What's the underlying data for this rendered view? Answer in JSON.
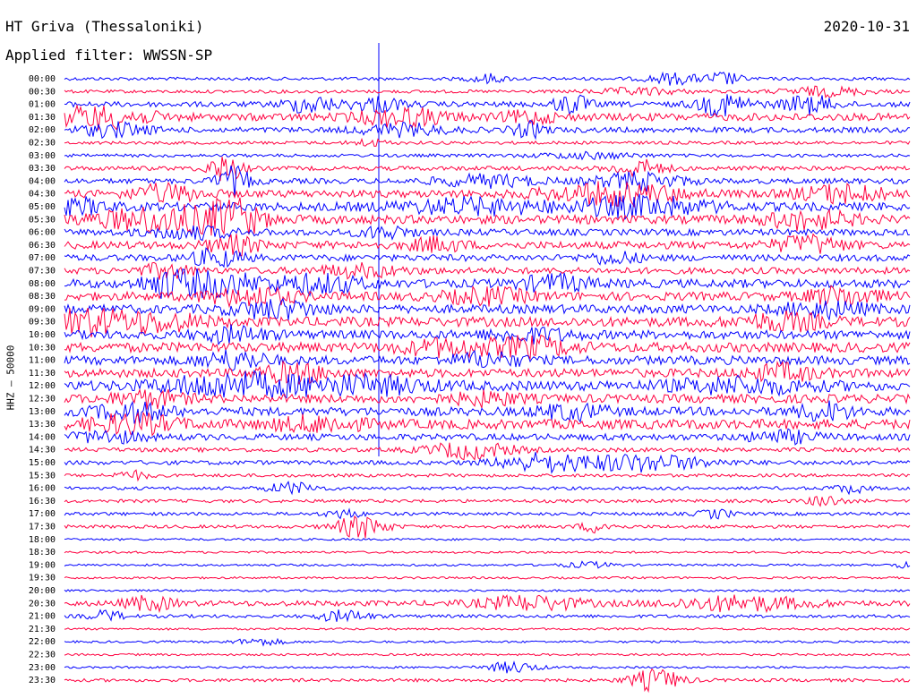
{
  "header": {
    "station": "HT Griva (Thessaloniki)",
    "date": "2020-10-31",
    "filter": "Applied filter: WWSSN-SP",
    "component_label": "HHZ – 50000"
  },
  "colors": {
    "even_hour": "#0000ff",
    "odd_hour": "#ff0040",
    "divider": "#0000ff"
  },
  "chart_data": {
    "type": "line",
    "title": "HT Griva (Thessaloniki)",
    "subtitle": "Applied filter: WWSSN-SP",
    "ylabel": "HHZ – 50000",
    "xlabel": "",
    "grid": false,
    "rows": [
      {
        "time": "00:00",
        "base": 0.3,
        "bursts": [
          {
            "t": 0.5,
            "w": 0.02,
            "a": 0.8
          },
          {
            "t": 0.72,
            "w": 0.03,
            "a": 1.0
          },
          {
            "t": 0.78,
            "w": 0.02,
            "a": 1.2
          }
        ]
      },
      {
        "time": "00:30",
        "base": 0.3,
        "bursts": [
          {
            "t": 0.68,
            "w": 0.05,
            "a": 0.6
          },
          {
            "t": 0.9,
            "w": 0.05,
            "a": 0.8
          }
        ]
      },
      {
        "time": "01:00",
        "base": 0.5,
        "bursts": [
          {
            "t": 0.29,
            "w": 0.03,
            "a": 1.5
          },
          {
            "t": 0.37,
            "w": 0.03,
            "a": 1.3
          },
          {
            "t": 0.6,
            "w": 0.02,
            "a": 1.8
          },
          {
            "t": 0.78,
            "w": 0.03,
            "a": 2.0
          },
          {
            "t": 0.88,
            "w": 0.03,
            "a": 1.6
          }
        ]
      },
      {
        "time": "01:30",
        "base": 0.7,
        "bursts": [
          {
            "t": 0.04,
            "w": 0.06,
            "a": 1.8
          },
          {
            "t": 0.4,
            "w": 0.05,
            "a": 1.5
          },
          {
            "t": 0.55,
            "w": 0.03,
            "a": 1.0
          }
        ]
      },
      {
        "time": "02:00",
        "base": 0.5,
        "bursts": [
          {
            "t": 0.06,
            "w": 0.04,
            "a": 1.2
          },
          {
            "t": 0.4,
            "w": 0.05,
            "a": 1.0
          },
          {
            "t": 0.55,
            "w": 0.02,
            "a": 1.3
          }
        ]
      },
      {
        "time": "02:30",
        "base": 0.3,
        "bursts": [
          {
            "t": 0.36,
            "w": 0.02,
            "a": 0.6
          }
        ]
      },
      {
        "time": "03:00",
        "base": 0.3,
        "bursts": [
          {
            "t": 0.62,
            "w": 0.06,
            "a": 0.5
          }
        ]
      },
      {
        "time": "03:30",
        "base": 0.4,
        "bursts": [
          {
            "t": 0.19,
            "w": 0.02,
            "a": 2.5
          },
          {
            "t": 0.68,
            "w": 0.03,
            "a": 1.5
          }
        ]
      },
      {
        "time": "04:00",
        "base": 0.5,
        "bursts": [
          {
            "t": 0.2,
            "w": 0.02,
            "a": 2.5
          },
          {
            "t": 0.5,
            "w": 0.06,
            "a": 1.0
          },
          {
            "t": 0.68,
            "w": 0.05,
            "a": 1.5
          }
        ]
      },
      {
        "time": "04:30",
        "base": 0.7,
        "bursts": [
          {
            "t": 0.12,
            "w": 0.04,
            "a": 1.5
          },
          {
            "t": 0.65,
            "w": 0.08,
            "a": 1.8
          },
          {
            "t": 0.92,
            "w": 0.05,
            "a": 1.5
          }
        ]
      },
      {
        "time": "05:00",
        "base": 0.8,
        "bursts": [
          {
            "t": 0.02,
            "w": 0.03,
            "a": 1.2
          },
          {
            "t": 0.48,
            "w": 0.08,
            "a": 1.2
          },
          {
            "t": 0.68,
            "w": 0.08,
            "a": 1.6
          }
        ]
      },
      {
        "time": "05:30",
        "base": 0.8,
        "bursts": [
          {
            "t": 0.12,
            "w": 0.08,
            "a": 2.2
          },
          {
            "t": 0.2,
            "w": 0.03,
            "a": 3.0
          },
          {
            "t": 0.88,
            "w": 0.05,
            "a": 1.5
          }
        ]
      },
      {
        "time": "06:00",
        "base": 0.6,
        "bursts": [
          {
            "t": 0.15,
            "w": 0.05,
            "a": 1.0
          },
          {
            "t": 0.38,
            "w": 0.03,
            "a": 1.0
          }
        ]
      },
      {
        "time": "06:30",
        "base": 0.7,
        "bursts": [
          {
            "t": 0.2,
            "w": 0.03,
            "a": 1.5
          },
          {
            "t": 0.44,
            "w": 0.03,
            "a": 1.2
          },
          {
            "t": 0.88,
            "w": 0.04,
            "a": 1.5
          }
        ]
      },
      {
        "time": "07:00",
        "base": 0.6,
        "bursts": [
          {
            "t": 0.18,
            "w": 0.03,
            "a": 1.5
          },
          {
            "t": 0.65,
            "w": 0.03,
            "a": 1.0
          }
        ]
      },
      {
        "time": "07:30",
        "base": 0.6,
        "bursts": [
          {
            "t": 0.12,
            "w": 0.03,
            "a": 1.2
          },
          {
            "t": 0.35,
            "w": 0.05,
            "a": 1.0
          }
        ]
      },
      {
        "time": "08:00",
        "base": 0.8,
        "bursts": [
          {
            "t": 0.12,
            "w": 0.03,
            "a": 1.8
          },
          {
            "t": 0.18,
            "w": 0.05,
            "a": 2.0
          },
          {
            "t": 0.3,
            "w": 0.05,
            "a": 1.5
          },
          {
            "t": 0.58,
            "w": 0.04,
            "a": 1.3
          }
        ]
      },
      {
        "time": "08:30",
        "base": 0.8,
        "bursts": [
          {
            "t": 0.22,
            "w": 0.05,
            "a": 1.5
          },
          {
            "t": 0.5,
            "w": 0.05,
            "a": 1.2
          },
          {
            "t": 0.92,
            "w": 0.04,
            "a": 1.5
          }
        ]
      },
      {
        "time": "09:00",
        "base": 0.8,
        "bursts": [
          {
            "t": 0.25,
            "w": 0.05,
            "a": 1.5
          },
          {
            "t": 0.9,
            "w": 0.05,
            "a": 1.2
          }
        ]
      },
      {
        "time": "09:30",
        "base": 0.9,
        "bursts": [
          {
            "t": 0.02,
            "w": 0.04,
            "a": 1.8
          },
          {
            "t": 0.1,
            "w": 0.06,
            "a": 1.6
          },
          {
            "t": 0.85,
            "w": 0.05,
            "a": 1.3
          }
        ]
      },
      {
        "time": "10:00",
        "base": 0.8,
        "bursts": [
          {
            "t": 0.2,
            "w": 0.04,
            "a": 1.2
          },
          {
            "t": 0.55,
            "w": 0.05,
            "a": 1.0
          }
        ]
      },
      {
        "time": "10:30",
        "base": 0.9,
        "bursts": [
          {
            "t": 0.45,
            "w": 0.05,
            "a": 1.2
          },
          {
            "t": 0.55,
            "w": 0.05,
            "a": 1.5
          }
        ]
      },
      {
        "time": "11:00",
        "base": 0.8,
        "bursts": [
          {
            "t": 0.2,
            "w": 0.04,
            "a": 1.5
          },
          {
            "t": 0.5,
            "w": 0.04,
            "a": 1.2
          }
        ]
      },
      {
        "time": "11:30",
        "base": 0.8,
        "bursts": [
          {
            "t": 0.27,
            "w": 0.04,
            "a": 1.5
          },
          {
            "t": 0.85,
            "w": 0.04,
            "a": 1.3
          }
        ]
      },
      {
        "time": "12:00",
        "base": 0.9,
        "bursts": [
          {
            "t": 0.2,
            "w": 0.08,
            "a": 2.0
          },
          {
            "t": 0.35,
            "w": 0.08,
            "a": 1.4
          },
          {
            "t": 0.8,
            "w": 0.08,
            "a": 1.2
          }
        ]
      },
      {
        "time": "12:30",
        "base": 0.8,
        "bursts": [
          {
            "t": 0.1,
            "w": 0.04,
            "a": 1.3
          },
          {
            "t": 0.5,
            "w": 0.04,
            "a": 1.0
          }
        ]
      },
      {
        "time": "13:00",
        "base": 0.8,
        "bursts": [
          {
            "t": 0.08,
            "w": 0.04,
            "a": 1.5
          },
          {
            "t": 0.6,
            "w": 0.04,
            "a": 1.2
          },
          {
            "t": 0.9,
            "w": 0.03,
            "a": 1.5
          }
        ]
      },
      {
        "time": "13:30",
        "base": 0.9,
        "bursts": [
          {
            "t": 0.08,
            "w": 0.05,
            "a": 1.5
          },
          {
            "t": 0.3,
            "w": 0.05,
            "a": 1.2
          }
        ]
      },
      {
        "time": "14:00",
        "base": 0.6,
        "bursts": [
          {
            "t": 0.05,
            "w": 0.04,
            "a": 1.0
          },
          {
            "t": 0.85,
            "w": 0.04,
            "a": 1.0
          }
        ]
      },
      {
        "time": "14:30",
        "base": 0.4,
        "bursts": [
          {
            "t": 0.48,
            "w": 0.05,
            "a": 1.5
          }
        ]
      },
      {
        "time": "15:00",
        "base": 0.4,
        "bursts": [
          {
            "t": 0.56,
            "w": 0.05,
            "a": 1.5
          },
          {
            "t": 0.68,
            "w": 0.08,
            "a": 1.5
          }
        ]
      },
      {
        "time": "15:30",
        "base": 0.3,
        "bursts": [
          {
            "t": 0.08,
            "w": 0.02,
            "a": 0.8
          }
        ]
      },
      {
        "time": "16:00",
        "base": 0.3,
        "bursts": [
          {
            "t": 0.27,
            "w": 0.03,
            "a": 1.0
          },
          {
            "t": 0.93,
            "w": 0.02,
            "a": 0.8
          }
        ]
      },
      {
        "time": "16:30",
        "base": 0.3,
        "bursts": [
          {
            "t": 0.9,
            "w": 0.02,
            "a": 1.0
          }
        ]
      },
      {
        "time": "17:00",
        "base": 0.3,
        "bursts": [
          {
            "t": 0.33,
            "w": 0.02,
            "a": 0.8
          },
          {
            "t": 0.77,
            "w": 0.02,
            "a": 0.8
          }
        ]
      },
      {
        "time": "17:30",
        "base": 0.3,
        "bursts": [
          {
            "t": 0.35,
            "w": 0.03,
            "a": 2.0
          },
          {
            "t": 0.63,
            "w": 0.02,
            "a": 1.0
          }
        ]
      },
      {
        "time": "18:00",
        "base": 0.2,
        "bursts": []
      },
      {
        "time": "18:30",
        "base": 0.2,
        "bursts": []
      },
      {
        "time": "19:00",
        "base": 0.2,
        "bursts": [
          {
            "t": 0.62,
            "w": 0.03,
            "a": 0.5
          },
          {
            "t": 0.99,
            "w": 0.01,
            "a": 0.6
          }
        ]
      },
      {
        "time": "19:30",
        "base": 0.2,
        "bursts": []
      },
      {
        "time": "20:00",
        "base": 0.2,
        "bursts": []
      },
      {
        "time": "20:30",
        "base": 0.5,
        "bursts": [
          {
            "t": 0.1,
            "w": 0.03,
            "a": 1.2
          },
          {
            "t": 0.55,
            "w": 0.06,
            "a": 1.3
          },
          {
            "t": 0.8,
            "w": 0.08,
            "a": 1.3
          }
        ]
      },
      {
        "time": "21:00",
        "base": 0.3,
        "bursts": [
          {
            "t": 0.05,
            "w": 0.02,
            "a": 1.0
          },
          {
            "t": 0.33,
            "w": 0.03,
            "a": 1.0
          }
        ]
      },
      {
        "time": "21:30",
        "base": 0.2,
        "bursts": []
      },
      {
        "time": "22:00",
        "base": 0.2,
        "bursts": [
          {
            "t": 0.23,
            "w": 0.03,
            "a": 0.6
          }
        ]
      },
      {
        "time": "22:30",
        "base": 0.2,
        "bursts": []
      },
      {
        "time": "23:00",
        "base": 0.2,
        "bursts": [
          {
            "t": 0.53,
            "w": 0.03,
            "a": 1.0
          }
        ]
      },
      {
        "time": "23:30",
        "base": 0.3,
        "bursts": [
          {
            "t": 0.7,
            "w": 0.03,
            "a": 2.0
          }
        ]
      }
    ]
  }
}
